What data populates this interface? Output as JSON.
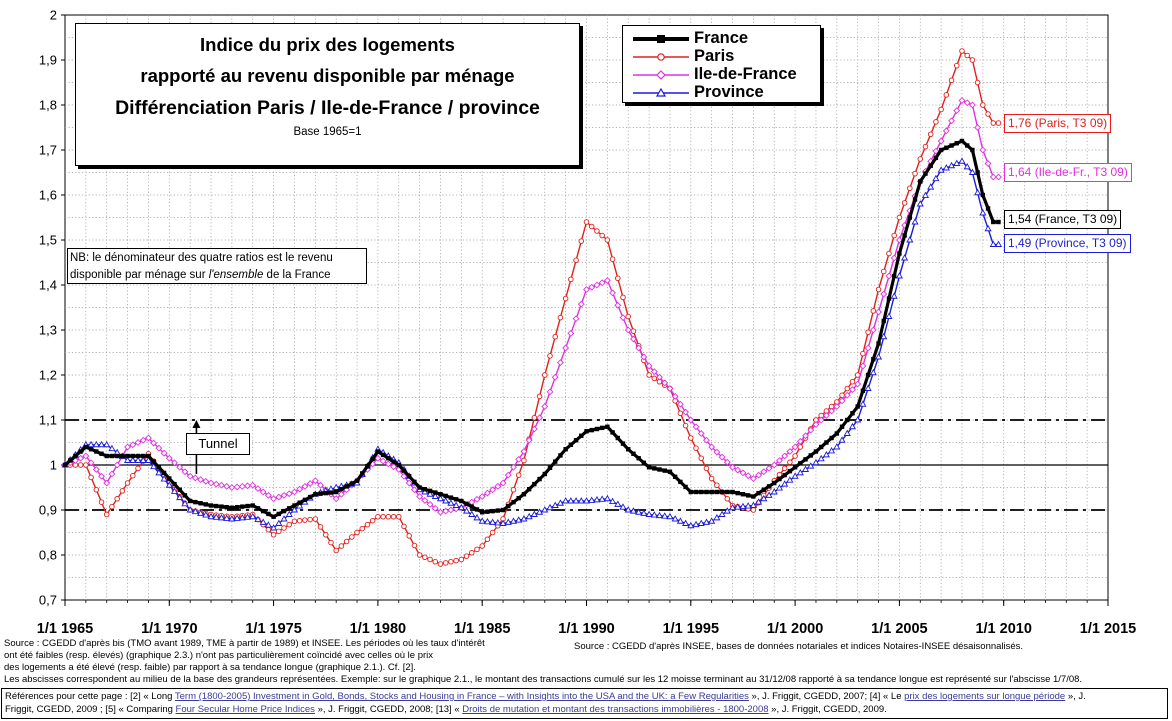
{
  "chart_data": {
    "type": "line",
    "title": "Indice du prix des logements",
    "title_line2": "rapporté au revenu disponible par ménage",
    "subtitle": "Différenciation Paris / Ile-de-France / province",
    "base_note": "Base 1965=1",
    "note": "NB: le dénominateur des quatre ratios est le revenu disponible par ménage sur l'ensemble de la France",
    "note_parts": {
      "line1": "NB: le dénominateur des quatre ratios est le revenu",
      "line2_pre": "disponible par ménage sur ",
      "line2_em": "l'ensemble",
      "line2_post": " de la France"
    },
    "xlim": [
      1965,
      2015
    ],
    "ylim": [
      0.7,
      2.0
    ],
    "x_tick_labels": [
      "1/1 1965",
      "1/1 1970",
      "1/1 1975",
      "1/1 1980",
      "1/1 1985",
      "1/1 1990",
      "1/1 1995",
      "1/1 2000",
      "1/1 2005",
      "1/1 2010",
      "1/1 2015"
    ],
    "y_tick_labels": [
      "0,7",
      "0,8",
      "0,9",
      "1",
      "1,1",
      "1,2",
      "1,3",
      "1,4",
      "1,5",
      "1,6",
      "1,7",
      "1,8",
      "1,9",
      "2"
    ],
    "grid": "dotted",
    "legend_position": "top-right",
    "reference_lines": [
      {
        "y": 1.0,
        "style": "solid"
      },
      {
        "y": 1.1,
        "style": "dash-dot"
      },
      {
        "y": 0.9,
        "style": "dash-dot"
      }
    ],
    "annotation_tunnel": {
      "label": "Tunnel",
      "x": 1971.3,
      "y_from": 0.98,
      "y_to": 1.1
    },
    "series": [
      {
        "name": "France",
        "color": "#000000",
        "marker": "square",
        "points": [
          [
            1965,
            1.0
          ],
          [
            1966,
            1.04
          ],
          [
            1967,
            1.02
          ],
          [
            1968,
            1.02
          ],
          [
            1969,
            1.02
          ],
          [
            1970,
            0.97
          ],
          [
            1971,
            0.92
          ],
          [
            1972,
            0.91
          ],
          [
            1973,
            0.905
          ],
          [
            1974,
            0.91
          ],
          [
            1975,
            0.885
          ],
          [
            1976,
            0.91
          ],
          [
            1977,
            0.935
          ],
          [
            1978,
            0.94
          ],
          [
            1979,
            0.965
          ],
          [
            1980,
            1.03
          ],
          [
            1981,
            1.0
          ],
          [
            1982,
            0.95
          ],
          [
            1983,
            0.935
          ],
          [
            1984,
            0.92
          ],
          [
            1985,
            0.895
          ],
          [
            1986,
            0.9
          ],
          [
            1987,
            0.935
          ],
          [
            1988,
            0.98
          ],
          [
            1989,
            1.035
          ],
          [
            1990,
            1.075
          ],
          [
            1991,
            1.085
          ],
          [
            1992,
            1.035
          ],
          [
            1993,
            0.995
          ],
          [
            1994,
            0.985
          ],
          [
            1995,
            0.94
          ],
          [
            1996,
            0.94
          ],
          [
            1997,
            0.94
          ],
          [
            1998,
            0.93
          ],
          [
            1999,
            0.96
          ],
          [
            2000,
            0.995
          ],
          [
            2001,
            1.03
          ],
          [
            2002,
            1.07
          ],
          [
            2003,
            1.13
          ],
          [
            2004,
            1.27
          ],
          [
            2005,
            1.47
          ],
          [
            2006,
            1.63
          ],
          [
            2007,
            1.7
          ],
          [
            2008,
            1.72
          ],
          [
            2008.5,
            1.7
          ],
          [
            2009,
            1.6
          ],
          [
            2009.5,
            1.54
          ],
          [
            2009.75,
            1.54
          ]
        ]
      },
      {
        "name": "Paris",
        "color": "#e0201c",
        "marker": "circle",
        "points": [
          [
            1965,
            1.0
          ],
          [
            1966,
            1.0
          ],
          [
            1967,
            0.89
          ],
          [
            1968,
            0.96
          ],
          [
            1969,
            1.025
          ],
          [
            1970,
            0.96
          ],
          [
            1971,
            0.9
          ],
          [
            1972,
            0.89
          ],
          [
            1973,
            0.885
          ],
          [
            1974,
            0.89
          ],
          [
            1975,
            0.845
          ],
          [
            1976,
            0.875
          ],
          [
            1977,
            0.88
          ],
          [
            1978,
            0.81
          ],
          [
            1979,
            0.85
          ],
          [
            1980,
            0.885
          ],
          [
            1981,
            0.885
          ],
          [
            1982,
            0.8
          ],
          [
            1983,
            0.78
          ],
          [
            1984,
            0.79
          ],
          [
            1985,
            0.82
          ],
          [
            1986,
            0.88
          ],
          [
            1987,
            1.01
          ],
          [
            1988,
            1.2
          ],
          [
            1989,
            1.37
          ],
          [
            1990,
            1.54
          ],
          [
            1991,
            1.5
          ],
          [
            1992,
            1.33
          ],
          [
            1993,
            1.2
          ],
          [
            1994,
            1.17
          ],
          [
            1995,
            1.06
          ],
          [
            1996,
            0.97
          ],
          [
            1997,
            0.91
          ],
          [
            1998,
            0.9
          ],
          [
            1999,
            0.965
          ],
          [
            2000,
            1.02
          ],
          [
            2001,
            1.1
          ],
          [
            2002,
            1.14
          ],
          [
            2003,
            1.2
          ],
          [
            2004,
            1.39
          ],
          [
            2005,
            1.55
          ],
          [
            2006,
            1.68
          ],
          [
            2007,
            1.79
          ],
          [
            2008,
            1.92
          ],
          [
            2008.5,
            1.9
          ],
          [
            2009,
            1.8
          ],
          [
            2009.5,
            1.76
          ],
          [
            2009.75,
            1.76
          ]
        ]
      },
      {
        "name": "Ile-de-France",
        "color": "#e030e0",
        "marker": "diamond",
        "points": [
          [
            1965,
            1.0
          ],
          [
            1966,
            1.02
          ],
          [
            1967,
            0.96
          ],
          [
            1968,
            1.04
          ],
          [
            1969,
            1.06
          ],
          [
            1970,
            1.015
          ],
          [
            1971,
            0.975
          ],
          [
            1972,
            0.96
          ],
          [
            1973,
            0.95
          ],
          [
            1974,
            0.955
          ],
          [
            1975,
            0.925
          ],
          [
            1976,
            0.94
          ],
          [
            1977,
            0.965
          ],
          [
            1978,
            0.925
          ],
          [
            1979,
            0.965
          ],
          [
            1980,
            1.015
          ],
          [
            1981,
            0.99
          ],
          [
            1982,
            0.93
          ],
          [
            1983,
            0.895
          ],
          [
            1984,
            0.905
          ],
          [
            1985,
            0.93
          ],
          [
            1986,
            0.96
          ],
          [
            1987,
            1.03
          ],
          [
            1988,
            1.13
          ],
          [
            1989,
            1.26
          ],
          [
            1990,
            1.39
          ],
          [
            1991,
            1.41
          ],
          [
            1992,
            1.3
          ],
          [
            1993,
            1.22
          ],
          [
            1994,
            1.17
          ],
          [
            1995,
            1.1
          ],
          [
            1996,
            1.04
          ],
          [
            1997,
            0.995
          ],
          [
            1998,
            0.97
          ],
          [
            1999,
            1.0
          ],
          [
            2000,
            1.04
          ],
          [
            2001,
            1.09
          ],
          [
            2002,
            1.13
          ],
          [
            2003,
            1.18
          ],
          [
            2004,
            1.34
          ],
          [
            2005,
            1.5
          ],
          [
            2006,
            1.63
          ],
          [
            2007,
            1.72
          ],
          [
            2008,
            1.81
          ],
          [
            2008.5,
            1.8
          ],
          [
            2009,
            1.7
          ],
          [
            2009.5,
            1.64
          ],
          [
            2009.75,
            1.64
          ]
        ]
      },
      {
        "name": "Province",
        "color": "#1c1cd8",
        "marker": "triangle",
        "points": [
          [
            1965,
            1.0
          ],
          [
            1966,
            1.045
          ],
          [
            1967,
            1.045
          ],
          [
            1968,
            1.01
          ],
          [
            1969,
            1.01
          ],
          [
            1970,
            0.955
          ],
          [
            1971,
            0.9
          ],
          [
            1972,
            0.885
          ],
          [
            1973,
            0.88
          ],
          [
            1974,
            0.885
          ],
          [
            1975,
            0.86
          ],
          [
            1976,
            0.9
          ],
          [
            1977,
            0.935
          ],
          [
            1978,
            0.95
          ],
          [
            1979,
            0.96
          ],
          [
            1980,
            1.035
          ],
          [
            1981,
            1.005
          ],
          [
            1982,
            0.945
          ],
          [
            1983,
            0.925
          ],
          [
            1984,
            0.905
          ],
          [
            1985,
            0.875
          ],
          [
            1986,
            0.87
          ],
          [
            1987,
            0.88
          ],
          [
            1988,
            0.9
          ],
          [
            1989,
            0.92
          ],
          [
            1990,
            0.92
          ],
          [
            1991,
            0.925
          ],
          [
            1992,
            0.9
          ],
          [
            1993,
            0.89
          ],
          [
            1994,
            0.885
          ],
          [
            1995,
            0.865
          ],
          [
            1996,
            0.875
          ],
          [
            1997,
            0.905
          ],
          [
            1998,
            0.91
          ],
          [
            1999,
            0.94
          ],
          [
            2000,
            0.975
          ],
          [
            2001,
            1.005
          ],
          [
            2002,
            1.04
          ],
          [
            2003,
            1.1
          ],
          [
            2004,
            1.24
          ],
          [
            2005,
            1.42
          ],
          [
            2006,
            1.58
          ],
          [
            2007,
            1.655
          ],
          [
            2008,
            1.675
          ],
          [
            2008.5,
            1.65
          ],
          [
            2009,
            1.56
          ],
          [
            2009.5,
            1.49
          ],
          [
            2009.75,
            1.49
          ]
        ]
      }
    ],
    "end_labels": [
      {
        "text": "1,76 (Paris, T3 09)",
        "color": "#e0201c"
      },
      {
        "text": "1,64 (Ile-de-Fr., T3 09)",
        "color": "#e030e0"
      },
      {
        "text": "1,54 (France, T3 09)",
        "color": "#000000"
      },
      {
        "text": "1,49 (Province, T3 09)",
        "color": "#1c1cd8"
      }
    ]
  },
  "sources": {
    "left_line1": "Source : CGEDD d'après bis (TMO avant 1989, TME à partir de 1989) et INSEE.  Les périodes où les taux d'intérêt",
    "left_line2": "ont été faibles (resp. élevés) (graphique 2.3.) n'ont pas particulièrement coïncidé avec celles où le prix",
    "left_line3": "des logements a été élevé (resp. faible) par rapport à sa tendance longue (graphique 2.1.).   Cf. [2].",
    "right_line1": "Source : CGEDD d'après INSEE, bases de données notariales et indices Notaires-INSEE désaisonnalisés.",
    "abscisses_note": "Les abscisses correspondent au milieu de la base des grandeurs représentées.  Exemple: sur le graphique 2.1., le montant des transactions cumulé sur les 12 moisse terminant au 31/12/08 rapporté à sa tendance longue  est représenté sur l'abscisse 1/7/08."
  },
  "references": {
    "prefix": "Références pour cette page : [2] « Long",
    "ref2_link": "Term (1800-2005) Investment in Gold, Bonds, Stocks and Housing in France – with Insights into the USA and the UK: a Few Regularities",
    "ref2_rest": " », J. Friggit, CGEDD, 2007; [4] « Le",
    "ref4_link": "prix des logements sur longue période",
    "ref4_rest": " », J.",
    "line2_pre": "Friggit, CGEDD, 2009 ; [5] « Comparing",
    "ref5_link": "Four Secular Home Price Indices",
    "ref5_rest": " », J. Friggit, CGEDD, 2008; [13] « ",
    "ref13_link": "Droits de mutation et montant des transactions immobilières - 1800-2008",
    "ref13_rest": " », J. Friggit, CGEDD, 2009."
  }
}
